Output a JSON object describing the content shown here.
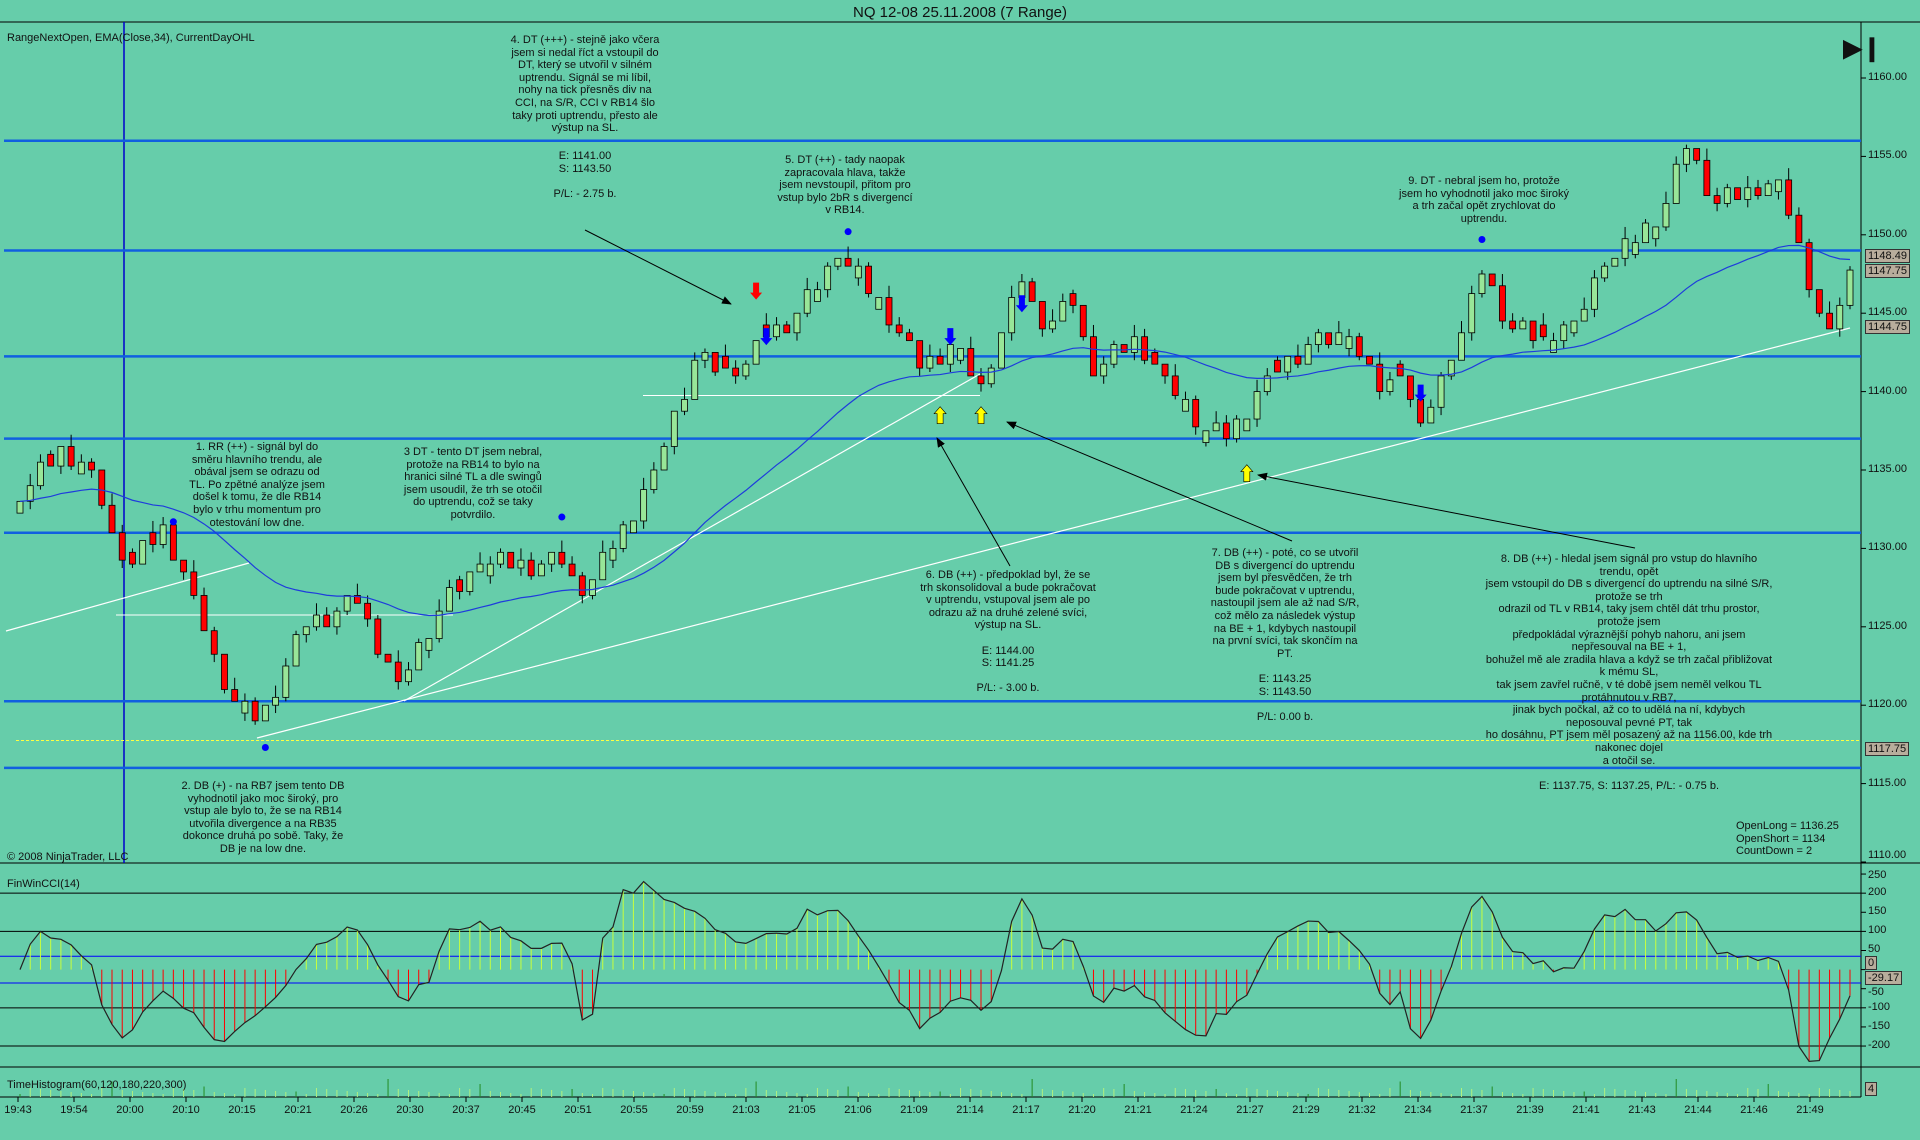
{
  "title": "NQ 12-08  25.11.2008 (7 Range)",
  "indicators_label": "RangeNextOpen, EMA(Close,34), CurrentDayOHL",
  "copyright": "© 2008 NinjaTrader, LLC",
  "cci_label": "FinWinCCI(14)",
  "histogram_label": "TimeHistogram(60,120,180,220,300)",
  "stats": "OpenLong = 1136.25\nOpenShort = 1134\nCountDown = 2",
  "notes": {
    "n1": "1. RR (++) - signál byl do\nsměru hlavního trendu, ale\nobával jsem se odrazu od\nTL. Po zpětné analýze jsem\ndošel k tomu, že dle RB14\nbylo v trhu momentum pro\notestování low dne.",
    "n2": "2. DB (+) - na RB7 jsem tento DB\nvyhodnotil jako moc široký, pro\nvstup ale bylo to, že se na RB14\nutvořila divergence a na RB35\ndokonce druhá po sobě. Taky, že\nDB je na low dne.",
    "n3": "3 DT - tento DT jsem nebral,\nprotože na RB14 to bylo na\nhranici silné TL a dle swingů\njsem usoudil, že trh se otočil\ndo uptrendu, což se taky\npotvrdilo.",
    "n4": "4. DT (+++) - stejně jako včera\njsem si nedal říct a vstoupil do\nDT, který se utvořil v silném\nuptrendu. Signál se mi líbil,\nnohy na tick přesněs div na\nCCI, na S/R, CCI v RB14 šlo\ntaky proti uptrendu, přesto ale\nvýstup na SL.",
    "n4_trade": "E: 1141.00\nS: 1143.50\n\nP/L: - 2.75 b.",
    "n5": "5. DT (++) - tady naopak\nzapracovala hlava, takže\njsem nevstoupil, přitom pro\nvstup bylo 2bR s divergencí\nv RB14.",
    "n6": "6. DB (++) - předpoklad byl, že se\ntrh skonsolidoval a bude pokračovat\nv uptrendu, vstupoval jsem ale po\nodrazu až na druhé zelené svíci,\nvýstup na SL.\n\nE: 1144.00\nS: 1141.25\n\nP/L: - 3.00 b.",
    "n7": "7. DB (++) - poté, co se utvořil\nDB s divergencí do uptrendu\njsem byl přesvědčen, že trh\nbude pokračovat v uptrendu,\nnastoupil jsem ale až nad S/R,\ncož mělo za následek výstup\nna BE + 1, kdybych nastoupil\nna první svíci, tak skončím na\nPT.\n\nE: 1143.25\nS: 1143.50\n\nP/L: 0.00 b.",
    "n8": "8. DB (++) - hledal jsem signál pro vstup do hlavního trendu, opět\njsem vstoupil do DB s divergencí do uptrendu na silné S/R, protože se trh\nodrazil od TL v RB14, taky jsem chtěl dát trhu prostor, protože jsem\npředpokládal výraznější pohyb nahoru, ani jsem nepřesouval na BE + 1,\nbohužel mě ale zradila hlava a když se trh začal přibližovat k mému SL,\ntak jsem zavřel ručně, v té době jsem neměl velkou TL protáhnutou v RB7,\njinak bych počkal, až co to udělá na ní, kdybych neposouval pevné PT, tak\nho dosáhnu, PT jsem měl posazený až na 1156.00, kde trh nakonec dojel\na otočil se.\n\nE: 1137.75, S: 1137.25, P/L: - 0.75 b.",
    "n9": "9. DT - nebral jsem ho, protože\njsem ho vyhodnotil jako moc široký\na trh začal opět zrychlovat do\nuptrendu."
  },
  "colors": {
    "background": "#66cdaa",
    "up": "#98e698",
    "down": "#ff0000",
    "ema": "#1e3cdc",
    "sr": "#1060e0",
    "cci_pos": "#c8ff3c",
    "cci_neg": "#ff0000"
  },
  "chart_data": {
    "type": "candlestick",
    "title": "NQ 12-08  25.11.2008 (7 Range)",
    "candle_count": 180,
    "close_waypoints": [
      [
        0,
        1133
      ],
      [
        4,
        1136.5
      ],
      [
        7,
        1135
      ],
      [
        9,
        1131
      ],
      [
        11,
        1129
      ],
      [
        14,
        1131.5
      ],
      [
        17,
        1127
      ],
      [
        20,
        1121
      ],
      [
        23,
        1119
      ],
      [
        24,
        1120
      ],
      [
        28,
        1125
      ],
      [
        33,
        1126.5
      ],
      [
        37,
        1121.5
      ],
      [
        41,
        1126
      ],
      [
        45,
        1129
      ],
      [
        53,
        1129
      ],
      [
        55,
        1127
      ],
      [
        58,
        1130
      ],
      [
        62,
        1135
      ],
      [
        66,
        1142
      ],
      [
        70,
        1141
      ],
      [
        73,
        1143.5
      ],
      [
        76,
        1145
      ],
      [
        80,
        1148.5
      ],
      [
        84,
        1146
      ],
      [
        88,
        1141.5
      ],
      [
        91,
        1143
      ],
      [
        94,
        1140.5
      ],
      [
        98,
        1147
      ],
      [
        100,
        1144
      ],
      [
        103,
        1145.5
      ],
      [
        105,
        1141
      ],
      [
        109,
        1143.5
      ],
      [
        112,
        1141
      ],
      [
        116,
        1137.5
      ],
      [
        118,
        1137
      ],
      [
        122,
        1141
      ],
      [
        126,
        1143
      ],
      [
        130,
        1143.5
      ],
      [
        133,
        1140
      ],
      [
        135,
        1141
      ],
      [
        137,
        1138
      ],
      [
        140,
        1142
      ],
      [
        143,
        1147.5
      ],
      [
        146,
        1144
      ],
      [
        149,
        1143.5
      ],
      [
        152,
        1144.5
      ],
      [
        155,
        1148
      ],
      [
        158,
        1149.5
      ],
      [
        161,
        1152
      ],
      [
        163,
        1155.5
      ],
      [
        166,
        1152
      ],
      [
        169,
        1153
      ],
      [
        172,
        1153.5
      ],
      [
        174,
        1149.5
      ],
      [
        176,
        1145
      ],
      [
        177,
        1144
      ],
      [
        179,
        1147.75
      ]
    ],
    "y_range": [
      1110,
      1160
    ],
    "y_ticks": [
      "1160.00",
      "1155.00",
      "1150.00",
      "1145.00",
      "1140.00",
      "1135.00",
      "1130.00",
      "1125.00",
      "1120.00",
      "1115.00",
      "1110.00"
    ],
    "x_ticks": [
      "19:43",
      "19:54",
      "20:00",
      "20:10",
      "20:15",
      "20:21",
      "20:26",
      "20:30",
      "20:37",
      "20:45",
      "20:51",
      "20:55",
      "20:59",
      "21:03",
      "21:05",
      "21:06",
      "21:09",
      "21:14",
      "21:17",
      "21:20",
      "21:21",
      "21:24",
      "21:27",
      "21:29",
      "21:32",
      "21:34",
      "21:37",
      "21:39",
      "21:41",
      "21:43",
      "21:44",
      "21:46",
      "21:49"
    ],
    "sr_levels": [
      1156,
      1149,
      1142.25,
      1137,
      1131,
      1120.25,
      1116
    ],
    "low_of_day": 1117.75,
    "price_tags": [
      "1148.49",
      "1147.75",
      "1144.75",
      "1117.75"
    ],
    "price_tag_values": [
      1148.49,
      1147.75,
      1144.75,
      1117.75
    ],
    "markers": [
      {
        "i": 15,
        "p": 1131.7,
        "type": "dot"
      },
      {
        "i": 24,
        "p": 1117.3,
        "type": "dot"
      },
      {
        "i": 53,
        "p": 1132,
        "type": "dot"
      },
      {
        "i": 81,
        "p": 1150.2,
        "type": "dot"
      },
      {
        "i": 143,
        "p": 1149.7,
        "type": "dot"
      },
      {
        "i": 90,
        "p": 1138.4,
        "type": "up-yellow"
      },
      {
        "i": 94,
        "p": 1138.4,
        "type": "up-yellow"
      },
      {
        "i": 120,
        "p": 1134.7,
        "type": "up-yellow"
      },
      {
        "i": 72,
        "p": 1146.5,
        "type": "down-red"
      },
      {
        "i": 73,
        "p": 1143.6,
        "type": "down-blue"
      },
      {
        "i": 91,
        "p": 1143.6,
        "type": "down-blue"
      },
      {
        "i": 98,
        "p": 1145.7,
        "type": "down-blue"
      },
      {
        "i": 137,
        "p": 1140,
        "type": "down-blue"
      }
    ],
    "cci": {
      "period": 14,
      "y_range": [
        -250,
        250
      ],
      "y_ticks": [
        "250",
        "200",
        "150",
        "100",
        "50",
        "0",
        "-50",
        "-100",
        "-150",
        "-200"
      ],
      "levels": [
        200,
        100,
        -100,
        -200
      ],
      "blue_levels": [
        35,
        -35
      ],
      "last_value": "-29.17",
      "zero_tag": "0"
    },
    "histogram_tag": "4",
    "ema_period": 34
  }
}
